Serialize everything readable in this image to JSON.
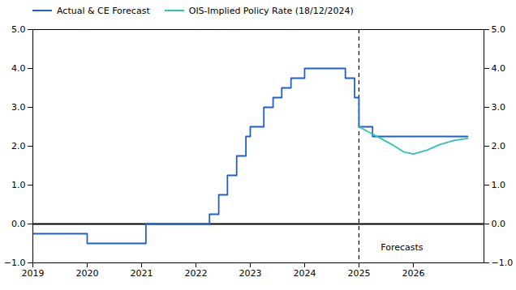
{
  "chart_data": {
    "type": "line",
    "series": [
      {
        "name": "Actual & CE Forecast",
        "color": "#2060c8",
        "type": "step",
        "x": [
          2019.0,
          2019.75,
          2020.0,
          2020.08,
          2021.0,
          2021.08,
          2022.0,
          2022.25,
          2022.42,
          2022.58,
          2022.75,
          2022.92,
          2023.0,
          2023.25,
          2023.42,
          2023.58,
          2023.75,
          2023.92,
          2024.0,
          2024.25,
          2024.5,
          2024.58,
          2024.75,
          2024.92,
          2025.0,
          2025.25,
          2025.5,
          2025.75,
          2026.0,
          2026.25,
          2026.5,
          2026.75,
          2027.0
        ],
        "values": [
          -0.25,
          -0.25,
          -0.5,
          -0.5,
          -0.5,
          0.0,
          0.0,
          0.25,
          0.75,
          1.25,
          1.75,
          2.25,
          2.5,
          3.0,
          3.25,
          3.5,
          3.75,
          3.75,
          4.0,
          4.0,
          4.0,
          4.0,
          3.75,
          3.25,
          2.5,
          2.25,
          2.25,
          2.25,
          2.25,
          2.25,
          2.25,
          2.25,
          2.25
        ]
      },
      {
        "name": "OIS-Implied Policy Rate (18/12/2024)",
        "color": "#2ec4b6",
        "type": "line",
        "x": [
          2025.0,
          2025.2,
          2025.4,
          2025.6,
          2025.83,
          2026.0,
          2026.25,
          2026.5,
          2026.75,
          2027.0
        ],
        "values": [
          2.5,
          2.35,
          2.2,
          2.05,
          1.85,
          1.8,
          1.9,
          2.05,
          2.15,
          2.2
        ]
      }
    ],
    "xlim": [
      2019.0,
      2027.3
    ],
    "xticks": [
      2019,
      2020,
      2021,
      2022,
      2023,
      2024,
      2025,
      2026
    ],
    "ylim": [
      -1,
      5
    ],
    "yticks": [
      -1,
      0,
      1,
      2,
      3,
      4,
      5
    ],
    "grid": false,
    "legend": "upper left",
    "reference_lines": [
      {
        "axis": "y",
        "value": 0,
        "color": "#000000",
        "line_style": "solid"
      },
      {
        "axis": "x",
        "value": 2025.0,
        "color": "#000000",
        "line_style": "dashed"
      }
    ],
    "annotations": [
      {
        "text": "Forecasts",
        "x": 2025.4,
        "y": -0.6
      }
    ]
  }
}
